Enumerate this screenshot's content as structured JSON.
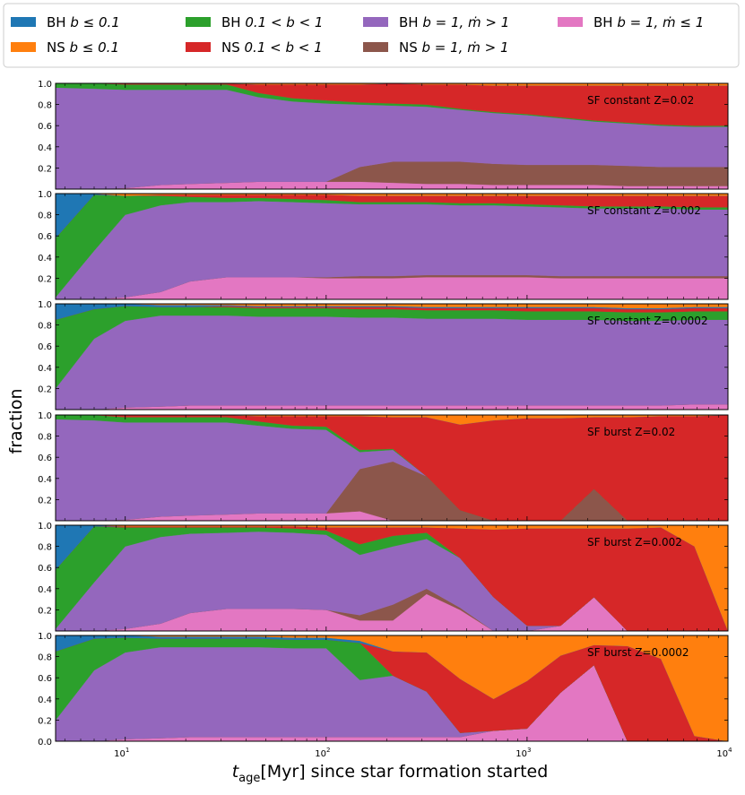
{
  "chart_data": {
    "type": "area",
    "stacked": true,
    "xscale": "log",
    "xlim": [
      4.5,
      10000
    ],
    "ylim": [
      0,
      1
    ],
    "xlabel": "t_age[Myr] since star formation started",
    "xlabel_main": "t",
    "xlabel_sub": "age",
    "xlabel_rest": "[Myr] since star formation started",
    "ylabel": "fraction",
    "yticks": [
      "0.0",
      "0.2",
      "0.4",
      "0.6",
      "0.8",
      "1.0"
    ],
    "xticks": [
      {
        "value": 10,
        "base": "10",
        "exp": "1"
      },
      {
        "value": 100,
        "base": "10",
        "exp": "2"
      },
      {
        "value": 1000,
        "base": "10",
        "exp": "3"
      },
      {
        "value": 10000,
        "base": "10",
        "exp": "4"
      }
    ],
    "legend_position": "top",
    "series_order": [
      "bh_m_low",
      "ns_m_high",
      "bh_m_high",
      "bh_mid",
      "ns_mid",
      "bh_low",
      "ns_low"
    ],
    "series": [
      {
        "key": "bh_low",
        "name": "BH b ≤ 0.1",
        "color": "#1f77b4"
      },
      {
        "key": "ns_low",
        "name": "NS b ≤ 0.1",
        "color": "#ff7f0e"
      },
      {
        "key": "bh_mid",
        "name": "BH 0.1 < b < 1",
        "color": "#2ca02c"
      },
      {
        "key": "ns_mid",
        "name": "NS 0.1 < b < 1",
        "color": "#d62728"
      },
      {
        "key": "bh_m_high",
        "name": "BH b = 1, ṁ > 1",
        "color": "#9467bd"
      },
      {
        "key": "ns_m_high",
        "name": "NS b = 1, ṁ > 1",
        "color": "#8c564b"
      },
      {
        "key": "bh_m_low",
        "name": "BH b = 1, ṁ ≤ 1",
        "color": "#e377c2"
      }
    ],
    "legend_rows": [
      [
        {
          "prefix": "BH ",
          "math": "b ≤ 0.1",
          "color": "#1f77b4"
        },
        {
          "prefix": "BH ",
          "math": "0.1 < b < 1",
          "color": "#2ca02c"
        },
        {
          "prefix": "BH ",
          "math": "b = 1, ṁ > 1",
          "color": "#9467bd"
        },
        {
          "prefix": "BH ",
          "math": "b = 1, ṁ ≤ 1",
          "color": "#e377c2"
        }
      ],
      [
        {
          "prefix": "NS ",
          "math": "b ≤ 0.1",
          "color": "#ff7f0e"
        },
        {
          "prefix": "NS ",
          "math": "0.1 < b < 1",
          "color": "#d62728"
        },
        {
          "prefix": "NS ",
          "math": "b = 1, ṁ > 1",
          "color": "#8c564b"
        }
      ]
    ],
    "x": [
      4.5,
      7,
      10,
      15,
      21,
      32,
      46,
      68,
      100,
      147,
      215,
      316,
      464,
      681,
      1000,
      1468,
      2154,
      3162,
      4642,
      6813,
      10000
    ],
    "panels": [
      {
        "label": "SF constant Z=0.02",
        "bh_m_low": [
          0.0,
          0.0,
          0.01,
          0.04,
          0.05,
          0.06,
          0.07,
          0.07,
          0.07,
          0.07,
          0.06,
          0.05,
          0.05,
          0.04,
          0.04,
          0.04,
          0.04,
          0.03,
          0.03,
          0.03,
          0.03
        ],
        "ns_m_high": [
          0.0,
          0.0,
          0.0,
          0.0,
          0.0,
          0.0,
          0.0,
          0.0,
          0.0,
          0.14,
          0.2,
          0.21,
          0.21,
          0.2,
          0.19,
          0.19,
          0.19,
          0.19,
          0.18,
          0.18,
          0.18
        ],
        "bh_m_high": [
          0.96,
          0.95,
          0.93,
          0.9,
          0.89,
          0.88,
          0.8,
          0.76,
          0.74,
          0.59,
          0.53,
          0.52,
          0.49,
          0.48,
          0.47,
          0.44,
          0.41,
          0.4,
          0.39,
          0.38,
          0.38
        ],
        "bh_mid": [
          0.04,
          0.05,
          0.05,
          0.05,
          0.05,
          0.05,
          0.04,
          0.03,
          0.03,
          0.02,
          0.02,
          0.02,
          0.01,
          0.01,
          0.01,
          0.01,
          0.01,
          0.01,
          0.01,
          0.01,
          0.01
        ],
        "ns_mid": [
          0.0,
          0.0,
          0.01,
          0.01,
          0.01,
          0.01,
          0.08,
          0.13,
          0.15,
          0.17,
          0.19,
          0.19,
          0.23,
          0.25,
          0.27,
          0.3,
          0.33,
          0.35,
          0.37,
          0.38,
          0.38
        ],
        "bh_low": [
          0.0,
          0.0,
          0.0,
          0.0,
          0.0,
          0.0,
          0.0,
          0.0,
          0.0,
          0.0,
          0.0,
          0.0,
          0.0,
          0.0,
          0.0,
          0.0,
          0.0,
          0.0,
          0.0,
          0.0,
          0.0
        ],
        "ns_low": [
          0.0,
          0.0,
          0.0,
          0.0,
          0.0,
          0.0,
          0.01,
          0.01,
          0.01,
          0.01,
          0.0,
          0.01,
          0.01,
          0.02,
          0.02,
          0.02,
          0.02,
          0.02,
          0.02,
          0.02,
          0.02
        ]
      },
      {
        "label": "SF constant Z=0.002",
        "bh_m_low": [
          0.0,
          0.0,
          0.02,
          0.07,
          0.17,
          0.21,
          0.21,
          0.21,
          0.2,
          0.2,
          0.2,
          0.21,
          0.21,
          0.21,
          0.21,
          0.2,
          0.2,
          0.2,
          0.2,
          0.2,
          0.2
        ],
        "ns_m_high": [
          0.0,
          0.0,
          0.0,
          0.0,
          0.0,
          0.0,
          0.0,
          0.0,
          0.01,
          0.02,
          0.02,
          0.02,
          0.02,
          0.02,
          0.02,
          0.02,
          0.02,
          0.02,
          0.02,
          0.02,
          0.02
        ],
        "bh_m_high": [
          0.02,
          0.46,
          0.78,
          0.82,
          0.75,
          0.71,
          0.72,
          0.71,
          0.7,
          0.68,
          0.68,
          0.67,
          0.66,
          0.66,
          0.65,
          0.65,
          0.64,
          0.64,
          0.64,
          0.63,
          0.63
        ],
        "bh_mid": [
          0.56,
          0.53,
          0.18,
          0.09,
          0.05,
          0.04,
          0.03,
          0.03,
          0.03,
          0.02,
          0.02,
          0.02,
          0.02,
          0.02,
          0.02,
          0.02,
          0.02,
          0.02,
          0.02,
          0.02,
          0.02
        ],
        "ns_mid": [
          0.0,
          0.0,
          0.0,
          0.01,
          0.02,
          0.03,
          0.03,
          0.04,
          0.05,
          0.06,
          0.06,
          0.06,
          0.07,
          0.07,
          0.08,
          0.09,
          0.1,
          0.1,
          0.1,
          0.11,
          0.11
        ],
        "bh_low": [
          0.42,
          0.01,
          0.0,
          0.0,
          0.0,
          0.0,
          0.0,
          0.0,
          0.0,
          0.0,
          0.0,
          0.0,
          0.0,
          0.0,
          0.0,
          0.0,
          0.0,
          0.0,
          0.0,
          0.0,
          0.0
        ],
        "ns_low": [
          0.0,
          0.0,
          0.02,
          0.01,
          0.01,
          0.01,
          0.01,
          0.01,
          0.01,
          0.02,
          0.02,
          0.02,
          0.02,
          0.02,
          0.02,
          0.02,
          0.02,
          0.02,
          0.02,
          0.02,
          0.02
        ]
      },
      {
        "label": "SF constant Z=0.0002",
        "bh_m_low": [
          0.0,
          0.0,
          0.02,
          0.03,
          0.04,
          0.04,
          0.04,
          0.04,
          0.04,
          0.04,
          0.04,
          0.04,
          0.04,
          0.04,
          0.04,
          0.04,
          0.04,
          0.04,
          0.04,
          0.05,
          0.05
        ],
        "ns_m_high": [
          0.0,
          0.0,
          0.0,
          0.0,
          0.0,
          0.0,
          0.0,
          0.0,
          0.0,
          0.0,
          0.0,
          0.0,
          0.0,
          0.0,
          0.0,
          0.0,
          0.0,
          0.0,
          0.0,
          0.0,
          0.0
        ],
        "bh_m_high": [
          0.2,
          0.67,
          0.82,
          0.86,
          0.85,
          0.85,
          0.84,
          0.84,
          0.84,
          0.83,
          0.83,
          0.82,
          0.82,
          0.82,
          0.81,
          0.81,
          0.81,
          0.8,
          0.8,
          0.8,
          0.8
        ],
        "bh_mid": [
          0.65,
          0.28,
          0.14,
          0.08,
          0.08,
          0.08,
          0.08,
          0.08,
          0.08,
          0.08,
          0.08,
          0.08,
          0.08,
          0.08,
          0.08,
          0.08,
          0.08,
          0.08,
          0.08,
          0.08,
          0.08
        ],
        "ns_mid": [
          0.0,
          0.0,
          0.0,
          0.0,
          0.0,
          0.01,
          0.01,
          0.01,
          0.01,
          0.02,
          0.02,
          0.02,
          0.02,
          0.02,
          0.03,
          0.03,
          0.03,
          0.03,
          0.03,
          0.03,
          0.03
        ],
        "bh_low": [
          0.15,
          0.05,
          0.02,
          0.02,
          0.02,
          0.01,
          0.01,
          0.01,
          0.01,
          0.01,
          0.01,
          0.01,
          0.01,
          0.01,
          0.01,
          0.01,
          0.01,
          0.01,
          0.01,
          0.01,
          0.01
        ],
        "ns_low": [
          0.0,
          0.0,
          0.0,
          0.01,
          0.01,
          0.01,
          0.02,
          0.02,
          0.02,
          0.02,
          0.02,
          0.03,
          0.03,
          0.03,
          0.03,
          0.03,
          0.03,
          0.04,
          0.04,
          0.03,
          0.03
        ]
      },
      {
        "label": "SF burst Z=0.02",
        "bh_m_low": [
          0.0,
          0.0,
          0.01,
          0.04,
          0.05,
          0.06,
          0.07,
          0.07,
          0.07,
          0.09,
          0.0,
          0.0,
          0.0,
          0.0,
          0.0,
          0.0,
          0.0,
          0.0,
          0.0,
          0.0,
          0.0
        ],
        "ns_m_high": [
          0.0,
          0.0,
          0.0,
          0.0,
          0.0,
          0.0,
          0.0,
          0.0,
          0.0,
          0.4,
          0.56,
          0.42,
          0.1,
          0.0,
          0.0,
          0.0,
          0.3,
          0.0,
          0.0,
          0.0,
          0.0
        ],
        "bh_m_high": [
          0.96,
          0.95,
          0.92,
          0.89,
          0.88,
          0.87,
          0.83,
          0.8,
          0.79,
          0.16,
          0.11,
          0.0,
          0.0,
          0.0,
          0.0,
          0.0,
          0.0,
          0.0,
          0.0,
          0.0,
          0.0
        ],
        "bh_mid": [
          0.04,
          0.05,
          0.05,
          0.05,
          0.05,
          0.05,
          0.04,
          0.03,
          0.03,
          0.02,
          0.01,
          0.0,
          0.0,
          0.0,
          0.0,
          0.0,
          0.0,
          0.0,
          0.0,
          0.0,
          0.0
        ],
        "ns_mid": [
          0.0,
          0.0,
          0.02,
          0.02,
          0.02,
          0.02,
          0.05,
          0.09,
          0.1,
          0.32,
          0.3,
          0.56,
          0.81,
          0.95,
          0.97,
          0.97,
          0.68,
          0.98,
          0.99,
          0.99,
          1.0
        ],
        "bh_low": [
          0.0,
          0.0,
          0.0,
          0.0,
          0.0,
          0.0,
          0.0,
          0.0,
          0.0,
          0.0,
          0.0,
          0.0,
          0.0,
          0.0,
          0.0,
          0.0,
          0.0,
          0.0,
          0.0,
          0.0,
          0.0
        ],
        "ns_low": [
          0.0,
          0.0,
          0.0,
          0.0,
          0.0,
          0.0,
          0.01,
          0.01,
          0.01,
          0.01,
          0.02,
          0.02,
          0.09,
          0.05,
          0.03,
          0.03,
          0.02,
          0.02,
          0.01,
          0.01,
          0.0
        ]
      },
      {
        "label": "SF burst Z=0.002",
        "bh_m_low": [
          0.0,
          0.0,
          0.02,
          0.07,
          0.17,
          0.21,
          0.21,
          0.21,
          0.2,
          0.1,
          0.1,
          0.35,
          0.2,
          0.0,
          0.0,
          0.05,
          0.32,
          0.0,
          0.0,
          0.0,
          0.0
        ],
        "ns_m_high": [
          0.0,
          0.0,
          0.0,
          0.0,
          0.0,
          0.0,
          0.0,
          0.0,
          0.0,
          0.05,
          0.15,
          0.05,
          0.02,
          0.0,
          0.0,
          0.0,
          0.0,
          0.0,
          0.0,
          0.0,
          0.0
        ],
        "bh_m_high": [
          0.02,
          0.46,
          0.78,
          0.82,
          0.75,
          0.72,
          0.73,
          0.72,
          0.71,
          0.57,
          0.55,
          0.47,
          0.47,
          0.32,
          0.05,
          0.0,
          0.0,
          0.0,
          0.0,
          0.0,
          0.0
        ],
        "bh_mid": [
          0.56,
          0.53,
          0.18,
          0.09,
          0.06,
          0.05,
          0.04,
          0.04,
          0.04,
          0.1,
          0.1,
          0.06,
          0.0,
          0.0,
          0.0,
          0.0,
          0.0,
          0.0,
          0.0,
          0.0,
          0.0
        ],
        "ns_mid": [
          0.0,
          0.0,
          0.01,
          0.01,
          0.01,
          0.01,
          0.01,
          0.02,
          0.03,
          0.16,
          0.08,
          0.05,
          0.28,
          0.64,
          0.92,
          0.92,
          0.65,
          0.97,
          0.98,
          0.8,
          0.0
        ],
        "bh_low": [
          0.42,
          0.01,
          0.0,
          0.0,
          0.0,
          0.0,
          0.0,
          0.0,
          0.0,
          0.0,
          0.0,
          0.0,
          0.0,
          0.0,
          0.0,
          0.0,
          0.0,
          0.0,
          0.0,
          0.0,
          0.0
        ],
        "ns_low": [
          0.0,
          0.0,
          0.01,
          0.01,
          0.01,
          0.01,
          0.01,
          0.01,
          0.02,
          0.02,
          0.02,
          0.02,
          0.03,
          0.04,
          0.03,
          0.03,
          0.03,
          0.03,
          0.02,
          0.2,
          1.0
        ]
      },
      {
        "label": "SF burst Z=0.0002",
        "bh_m_low": [
          0.0,
          0.0,
          0.02,
          0.03,
          0.04,
          0.04,
          0.04,
          0.04,
          0.04,
          0.04,
          0.04,
          0.04,
          0.04,
          0.1,
          0.12,
          0.46,
          0.72,
          0.0,
          0.0,
          0.0,
          0.0
        ],
        "ns_m_high": [
          0.0,
          0.0,
          0.0,
          0.0,
          0.0,
          0.0,
          0.0,
          0.0,
          0.0,
          0.0,
          0.0,
          0.0,
          0.0,
          0.0,
          0.0,
          0.0,
          0.0,
          0.0,
          0.0,
          0.0,
          0.0
        ],
        "bh_m_high": [
          0.2,
          0.67,
          0.82,
          0.86,
          0.85,
          0.85,
          0.85,
          0.84,
          0.84,
          0.54,
          0.58,
          0.43,
          0.04,
          0.0,
          0.0,
          0.0,
          0.0,
          0.0,
          0.0,
          0.0,
          0.0
        ],
        "bh_mid": [
          0.65,
          0.3,
          0.14,
          0.08,
          0.08,
          0.08,
          0.08,
          0.08,
          0.08,
          0.35,
          0.0,
          0.0,
          0.0,
          0.0,
          0.0,
          0.0,
          0.0,
          0.0,
          0.0,
          0.0,
          0.0
        ],
        "ns_mid": [
          0.0,
          0.0,
          0.0,
          0.0,
          0.0,
          0.0,
          0.0,
          0.0,
          0.0,
          0.0,
          0.23,
          0.37,
          0.51,
          0.3,
          0.45,
          0.35,
          0.19,
          0.9,
          0.78,
          0.05,
          0.0
        ],
        "bh_low": [
          0.15,
          0.03,
          0.02,
          0.02,
          0.02,
          0.02,
          0.02,
          0.02,
          0.02,
          0.02,
          0.0,
          0.0,
          0.0,
          0.0,
          0.0,
          0.0,
          0.0,
          0.0,
          0.0,
          0.0,
          0.0
        ],
        "ns_low": [
          0.0,
          0.0,
          0.0,
          0.01,
          0.01,
          0.01,
          0.01,
          0.02,
          0.02,
          0.05,
          0.15,
          0.16,
          0.41,
          0.6,
          0.43,
          0.19,
          0.09,
          0.1,
          0.22,
          0.95,
          1.0
        ]
      }
    ]
  }
}
